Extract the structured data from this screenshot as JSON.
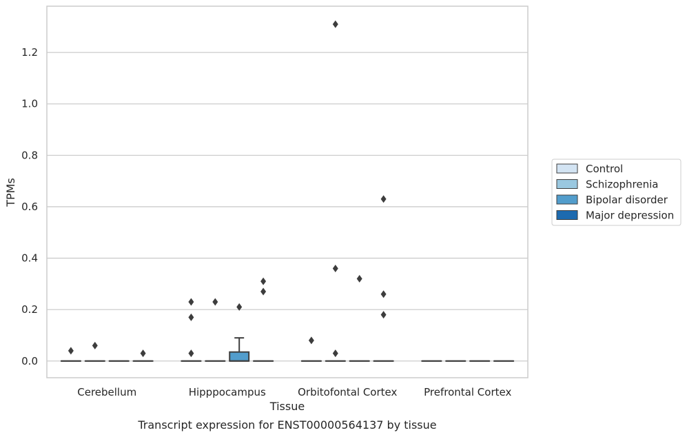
{
  "chart_data": {
    "type": "box",
    "caption": "Transcript expression for ENST00000564137 by tissue",
    "xlabel": "Tissue",
    "ylabel": "TPMs",
    "ylim": [
      -0.065,
      1.38
    ],
    "yticks": [
      0.0,
      0.2,
      0.4,
      0.6,
      0.8,
      1.0,
      1.2
    ],
    "ytick_labels": [
      "0.0",
      "0.2",
      "0.4",
      "0.6",
      "0.8",
      "1.0",
      "1.2"
    ],
    "grid": "horizontal",
    "legend_position": "right",
    "categories": [
      "Cerebellum",
      "Hipppocampus",
      "Orbitofontal Cortex",
      "Prefrontal Cortex"
    ],
    "series": [
      {
        "name": "Control",
        "color": "#d3e4f3",
        "boxes": [
          {
            "q1": 0,
            "median": 0,
            "q3": 0,
            "whisker_low": 0,
            "whisker_high": 0,
            "outliers": [
              0.04
            ]
          },
          {
            "q1": 0,
            "median": 0,
            "q3": 0,
            "whisker_low": 0,
            "whisker_high": 0,
            "outliers": [
              0.17,
              0.23,
              0.03
            ]
          },
          {
            "q1": 0,
            "median": 0,
            "q3": 0,
            "whisker_low": 0,
            "whisker_high": 0,
            "outliers": [
              0.08
            ]
          },
          {
            "q1": 0,
            "median": 0,
            "q3": 0,
            "whisker_low": 0,
            "whisker_high": 0,
            "outliers": []
          }
        ]
      },
      {
        "name": "Schizophrenia",
        "color": "#9ac8e0",
        "boxes": [
          {
            "q1": 0,
            "median": 0,
            "q3": 0,
            "whisker_low": 0,
            "whisker_high": 0,
            "outliers": [
              0.06
            ]
          },
          {
            "q1": 0,
            "median": 0,
            "q3": 0,
            "whisker_low": 0,
            "whisker_high": 0,
            "outliers": [
              0.23
            ]
          },
          {
            "q1": 0,
            "median": 0,
            "q3": 0,
            "whisker_low": 0,
            "whisker_high": 0,
            "outliers": [
              1.31,
              0.36,
              0.03
            ]
          },
          {
            "q1": 0,
            "median": 0,
            "q3": 0,
            "whisker_low": 0,
            "whisker_high": 0,
            "outliers": []
          }
        ]
      },
      {
        "name": "Bipolar disorder",
        "color": "#529dcc",
        "boxes": [
          {
            "q1": 0,
            "median": 0,
            "q3": 0,
            "whisker_low": 0,
            "whisker_high": 0,
            "outliers": []
          },
          {
            "q1": 0,
            "median": 0,
            "q3": 0.035,
            "whisker_low": 0,
            "whisker_high": 0.09,
            "outliers": [
              0.21
            ]
          },
          {
            "q1": 0,
            "median": 0,
            "q3": 0,
            "whisker_low": 0,
            "whisker_high": 0,
            "outliers": [
              0.32
            ]
          },
          {
            "q1": 0,
            "median": 0,
            "q3": 0,
            "whisker_low": 0,
            "whisker_high": 0,
            "outliers": []
          }
        ]
      },
      {
        "name": "Major depression",
        "color": "#1d6aaf",
        "boxes": [
          {
            "q1": 0,
            "median": 0,
            "q3": 0,
            "whisker_low": 0,
            "whisker_high": 0,
            "outliers": [
              0.03
            ]
          },
          {
            "q1": 0,
            "median": 0,
            "q3": 0,
            "whisker_low": 0,
            "whisker_high": 0,
            "outliers": [
              0.31,
              0.27
            ]
          },
          {
            "q1": 0,
            "median": 0,
            "q3": 0,
            "whisker_low": 0,
            "whisker_high": 0,
            "outliers": [
              0.63,
              0.26,
              0.18
            ]
          },
          {
            "q1": 0,
            "median": 0,
            "q3": 0,
            "whisker_low": 0,
            "whisker_high": 0,
            "outliers": []
          }
        ]
      }
    ]
  }
}
